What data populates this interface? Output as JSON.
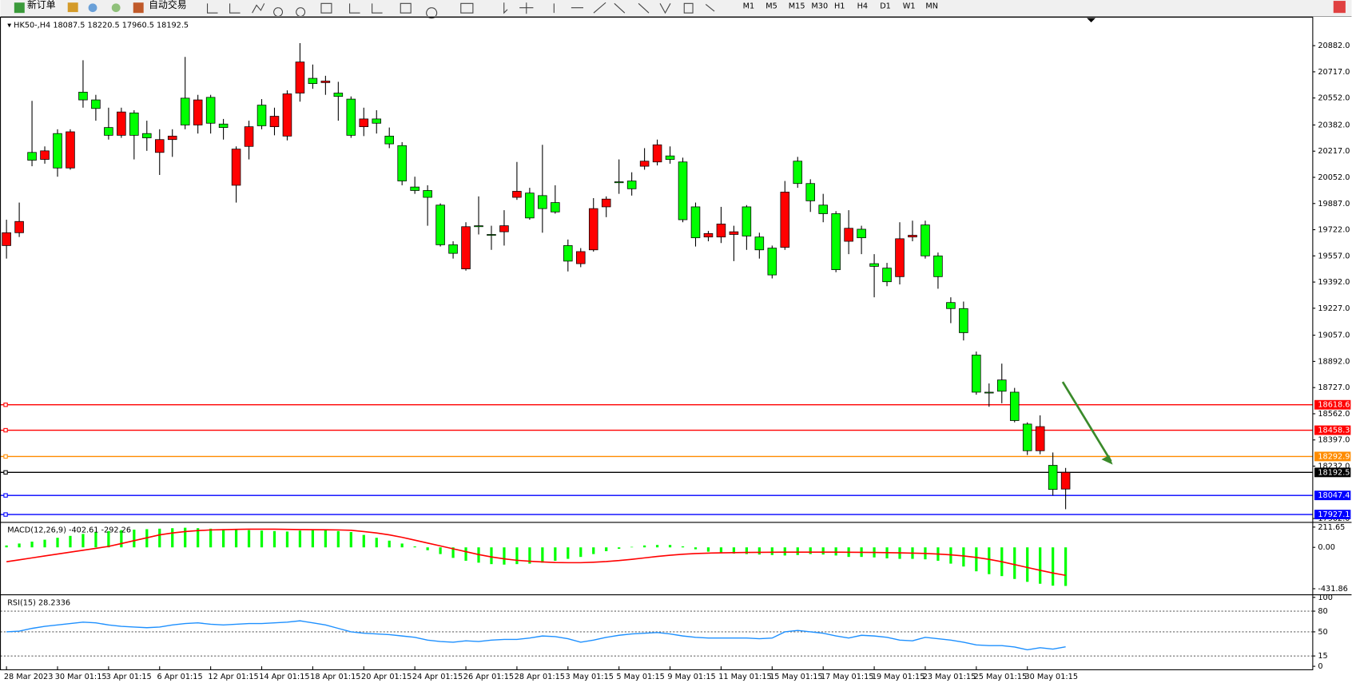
{
  "toolbar": {
    "buttons": [
      "新订单",
      "自动交易"
    ],
    "timeframes": [
      "M1",
      "M5",
      "M15",
      "M30",
      "H1",
      "H4",
      "D1",
      "W1",
      "MN"
    ]
  },
  "chart_data": {
    "type": "candlestick",
    "symbol": "HK50-,H4",
    "categories": [
      "28 Mar 2023",
      null,
      null,
      null,
      "30 Mar 01:15",
      null,
      null,
      null,
      "3 Apr 01:15",
      null,
      null,
      null,
      "6 Apr 01:15",
      null,
      null,
      null,
      "12 Apr 01:15",
      null,
      null,
      null,
      "14 Apr 01:15",
      null,
      null,
      null,
      "18 Apr 01:15",
      null,
      null,
      null,
      "20 Apr 01:15",
      null,
      null,
      null,
      "24 Apr 01:15",
      null,
      null,
      null,
      "26 Apr 01:15",
      null,
      null,
      null,
      "28 Apr 01:15",
      null,
      null,
      null,
      "3 May 01:15",
      null,
      null,
      null,
      "5 May 01:15",
      null,
      null,
      null,
      "9 May 01:15",
      null,
      null,
      null,
      "11 May 01:15",
      null,
      null,
      null,
      "15 May 01:15",
      null,
      null,
      null,
      "17 May 01:15",
      null,
      null,
      null,
      "19 May 01:15",
      null,
      null,
      null,
      "23 May 01:15",
      null,
      null,
      null,
      "25 May 01:15",
      null,
      null,
      null,
      "30 May 01:15",
      null,
      null,
      null
    ],
    "open": [
      19622,
      19703,
      20209,
      20165,
      20328,
      20111,
      20589,
      20540,
      20366,
      20317,
      20458,
      20328,
      20209,
      20290,
      20551,
      20382,
      20556,
      20388,
      20002,
      20247,
      20507,
      20371,
      20312,
      20583,
      20676,
      20649,
      20583,
      20545,
      20371,
      20420,
      20312,
      20252,
      19991,
      19969,
      19877,
      19627,
      19475,
      19747,
      19692,
      19709,
      19926,
      19953,
      19937,
      19893,
      19622,
      19508,
      19595,
      19866,
      20024,
      20029,
      20122,
      20149,
      20187,
      20149,
      19866,
      19676,
      19676,
      19692,
      19866,
      19676,
      19606,
      19611,
      20154,
      20013,
      19877,
      19823,
      19649,
      19725,
      19508,
      19480,
      19426,
      19676,
      19752,
      19557,
      19263,
      19225,
      18932,
      18698,
      18775,
      18698,
      18497,
      18329,
      18237,
      18087.5
    ],
    "high": [
      19785,
      19893,
      20534,
      20247,
      20355,
      20355,
      20790,
      20572,
      20491,
      20491,
      20475,
      20409,
      20355,
      20355,
      20811,
      20572,
      20572,
      20420,
      20247,
      20409,
      20545,
      20491,
      20600,
      20898,
      20763,
      20692,
      20654,
      20562,
      20491,
      20475,
      20366,
      20274,
      20056,
      20002,
      19888,
      19649,
      19769,
      19932,
      19747,
      19845,
      20149,
      19986,
      20257,
      20002,
      19660,
      19606,
      19921,
      19932,
      20165,
      20084,
      20236,
      20290,
      20247,
      20176,
      19893,
      19714,
      19866,
      19747,
      19877,
      19703,
      19622,
      20029,
      20181,
      20040,
      19948,
      19839,
      19845,
      19747,
      19568,
      19513,
      19769,
      19779,
      19779,
      19578,
      19296,
      19269,
      18954,
      18753,
      18878,
      18725,
      18508,
      18552,
      18318,
      18220.5
    ],
    "low": [
      19540,
      19676,
      20122,
      20138,
      20056,
      20100,
      20491,
      20409,
      20290,
      20301,
      20165,
      20219,
      20067,
      20181,
      20355,
      20328,
      20328,
      20290,
      19893,
      20165,
      20355,
      20317,
      20285,
      20529,
      20610,
      20572,
      20409,
      20301,
      20312,
      20328,
      20236,
      20002,
      19948,
      19747,
      19616,
      19540,
      19464,
      19692,
      19595,
      19622,
      19910,
      19785,
      19703,
      19823,
      19459,
      19486,
      19584,
      19801,
      19948,
      19937,
      20100,
      20127,
      20138,
      19769,
      19616,
      19649,
      19638,
      19524,
      19595,
      19540,
      19415,
      19595,
      19986,
      19834,
      19769,
      19454,
      19568,
      19568,
      19296,
      19366,
      19377,
      19649,
      19540,
      19350,
      19133,
      19024,
      18682,
      18606,
      18628,
      18508,
      18302,
      18307,
      18047,
      17960.5
    ],
    "close": [
      19703,
      19774,
      20160,
      20219,
      20111,
      20339,
      20540,
      20486,
      20317,
      20464,
      20317,
      20301,
      20290,
      20312,
      20382,
      20540,
      20393,
      20366,
      20230,
      20371,
      20377,
      20437,
      20578,
      20779,
      20643,
      20659,
      20562,
      20317,
      20420,
      20393,
      20263,
      20029,
      19969,
      19926,
      19627,
      19573,
      19741,
      19741,
      19687,
      19747,
      19964,
      19796,
      19855,
      19834,
      19524,
      19584,
      19855,
      19915,
      20018,
      19980,
      20154,
      20257,
      20165,
      19785,
      19671,
      19698,
      19758,
      19709,
      19682,
      19595,
      19437,
      19959,
      20013,
      19904,
      19823,
      19470,
      19731,
      19671,
      19491,
      19394,
      19665,
      19687,
      19557,
      19426,
      19225,
      19073,
      18698,
      18693,
      18704,
      18519,
      18329,
      18481,
      18085,
      18192.5
    ],
    "up_color": "#ff0000",
    "down_color": "#00ff00",
    "ylim": [
      17883,
      21061
    ],
    "yticks": [
      {
        "value": 20882,
        "label": "20882.0"
      },
      {
        "value": 20717,
        "label": "20717.0"
      },
      {
        "value": 20552,
        "label": "20552.0"
      },
      {
        "value": 20382,
        "label": "20382.0"
      },
      {
        "value": 20217,
        "label": "20217.0"
      },
      {
        "value": 20052,
        "label": "20052.0"
      },
      {
        "value": 19887,
        "label": "19887.0"
      },
      {
        "value": 19722,
        "label": "19722.0"
      },
      {
        "value": 19557,
        "label": "19557.0"
      },
      {
        "value": 19392,
        "label": "19392.0"
      },
      {
        "value": 19227,
        "label": "19227.0"
      },
      {
        "value": 19057,
        "label": "19057.0"
      },
      {
        "value": 18892,
        "label": "18892.0"
      },
      {
        "value": 18727,
        "label": "18727.0"
      },
      {
        "value": 18562,
        "label": "18562.0"
      },
      {
        "value": 18397,
        "label": "18397.0"
      },
      {
        "value": 18232,
        "label": "18232.0"
      },
      {
        "value": 17902,
        "label": "17902.0"
      }
    ],
    "hlines": [
      {
        "value": 18618.6,
        "color": "#ff0000"
      },
      {
        "value": 18458.3,
        "color": "#ff0000"
      },
      {
        "value": 18292.9,
        "color": "#ff8c00"
      },
      {
        "value": 18192.5,
        "color": "#000000"
      },
      {
        "value": 18047.4,
        "color": "#0000ff"
      },
      {
        "value": 17927.1,
        "color": "#0000ff"
      }
    ],
    "macd": {
      "name": "MACD(12,26,9)",
      "hist_color": "#00ff00",
      "signal_color": "#ff0000",
      "histogram": [
        20,
        40,
        60,
        80,
        100,
        120,
        140,
        160,
        170,
        180,
        185,
        190,
        195,
        200,
        205,
        200,
        195,
        190,
        185,
        180,
        175,
        170,
        165,
        175,
        180,
        180,
        170,
        160,
        130,
        100,
        70,
        40,
        10,
        -30,
        -70,
        -110,
        -140,
        -160,
        -175,
        -180,
        -175,
        -170,
        -160,
        -140,
        -120,
        -100,
        -70,
        -40,
        -15,
        5,
        20,
        25,
        25,
        10,
        -20,
        -45,
        -60,
        -65,
        -70,
        -75,
        -80,
        -85,
        -80,
        -70,
        -75,
        -85,
        -100,
        -100,
        -105,
        -115,
        -120,
        -120,
        -125,
        -140,
        -170,
        -200,
        -250,
        -280,
        -300,
        -330,
        -360,
        -380,
        -400,
        -402.61
      ],
      "signal": [
        -150,
        -130,
        -110,
        -90,
        -70,
        -50,
        -30,
        -10,
        10,
        40,
        70,
        100,
        130,
        150,
        165,
        175,
        182,
        185,
        188,
        190,
        190,
        190,
        188,
        186,
        185,
        184,
        182,
        178,
        165,
        150,
        130,
        105,
        75,
        45,
        15,
        -15,
        -45,
        -75,
        -100,
        -120,
        -135,
        -145,
        -152,
        -158,
        -160,
        -160,
        -155,
        -148,
        -138,
        -125,
        -110,
        -95,
        -82,
        -72,
        -65,
        -60,
        -57,
        -55,
        -53,
        -52,
        -51,
        -50,
        -50,
        -50,
        -50,
        -50,
        -51,
        -52,
        -53,
        -55,
        -57,
        -60,
        -64,
        -70,
        -78,
        -90,
        -105,
        -125,
        -150,
        -180,
        -210,
        -240,
        -268,
        -292.26
      ],
      "ylim": [
        -486,
        252
      ],
      "yticks": [
        211.65,
        {
          "value": 0,
          "label": "0.00"
        },
        -431.86
      ]
    },
    "rsi": {
      "name": "RSI(15)",
      "color": "#1e90ff",
      "values": [
        50,
        51,
        55,
        58,
        60,
        62,
        64,
        63,
        60,
        58,
        57,
        56,
        57,
        60,
        62,
        63,
        61,
        60,
        61,
        62,
        62,
        63,
        64,
        66,
        63,
        60,
        55,
        50,
        48,
        47,
        46,
        44,
        42,
        38,
        36,
        35,
        37,
        36,
        38,
        39,
        39,
        41,
        44,
        43,
        40,
        35,
        38,
        42,
        45,
        47,
        48,
        49,
        47,
        44,
        42,
        41,
        41,
        41,
        41,
        40,
        41,
        50,
        52,
        50,
        48,
        44,
        41,
        45,
        44,
        42,
        38,
        37,
        42,
        40,
        38,
        35,
        31,
        30,
        30,
        28,
        24,
        27,
        25,
        28.2336
      ],
      "ylim": [
        0,
        102.5
      ],
      "yticks": [
        100,
        80,
        50,
        15,
        0
      ],
      "levels": [
        80,
        50,
        15
      ]
    }
  }
}
